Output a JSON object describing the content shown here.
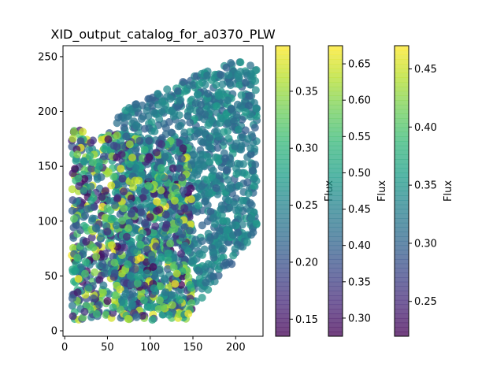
{
  "chart_data": {
    "type": "scatter",
    "title": "XID_output_catalog_for_a0370_PLW",
    "xlabel": "",
    "ylabel": "",
    "xlim": [
      -2,
      232
    ],
    "ylim": [
      -5,
      260
    ],
    "x_ticks": [
      0,
      50,
      100,
      150,
      200
    ],
    "y_ticks": [
      0,
      50,
      100,
      150,
      200,
      250
    ],
    "grid": false,
    "colormap": "viridis",
    "point_alpha": 0.75,
    "clusters": [
      {
        "name": "",
        "description": "dense lower-left region",
        "x_range": [
          8,
          150
        ],
        "y_range": [
          10,
          200
        ],
        "flux_range": [
          0.14,
          0.39
        ]
      },
      {
        "name": "",
        "description": "upper band",
        "x_range": [
          60,
          225
        ],
        "y_range": [
          20,
          245
        ],
        "flux_range": [
          0.2,
          0.3
        ]
      }
    ],
    "colorbars": [
      {
        "label": "Flux",
        "ticks": [
          0.15,
          0.2,
          0.25,
          0.3,
          0.35
        ],
        "range": [
          0.135,
          0.39
        ]
      },
      {
        "label": "Flux",
        "ticks": [
          0.3,
          0.35,
          0.4,
          0.45,
          0.5,
          0.55,
          0.6,
          0.65
        ],
        "range": [
          0.275,
          0.675
        ]
      },
      {
        "label": "Flux",
        "ticks": [
          0.25,
          0.3,
          0.35,
          0.4,
          0.45
        ],
        "range": [
          0.22,
          0.47
        ]
      }
    ]
  }
}
